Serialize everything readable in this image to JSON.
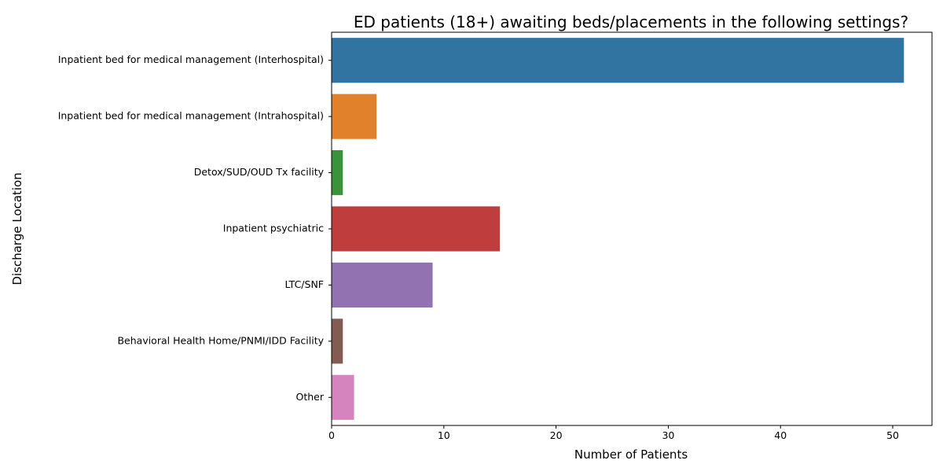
{
  "chart_data": {
    "type": "bar",
    "orientation": "horizontal",
    "title": "ED patients (18+) awaiting beds/placements in the following settings?",
    "xlabel": "Number of Patients",
    "ylabel": "Discharge Location",
    "xlim": [
      0,
      53.5
    ],
    "xticks": [
      0,
      10,
      20,
      30,
      40,
      50
    ],
    "grid": false,
    "categories": [
      "Inpatient bed for medical management (Interhospital)",
      "Inpatient bed for medical management (Intrahospital)",
      "Detox/SUD/OUD Tx facility",
      "Inpatient psychiatric",
      "LTC/SNF",
      "Behavioral Health Home/PNMI/IDD Facility",
      "Other"
    ],
    "values": [
      51,
      4,
      1,
      15,
      9,
      1,
      2
    ],
    "colors": [
      "#3274a1",
      "#e1812c",
      "#3a923a",
      "#c03d3e",
      "#9372b2",
      "#845b53",
      "#d684bd"
    ]
  }
}
